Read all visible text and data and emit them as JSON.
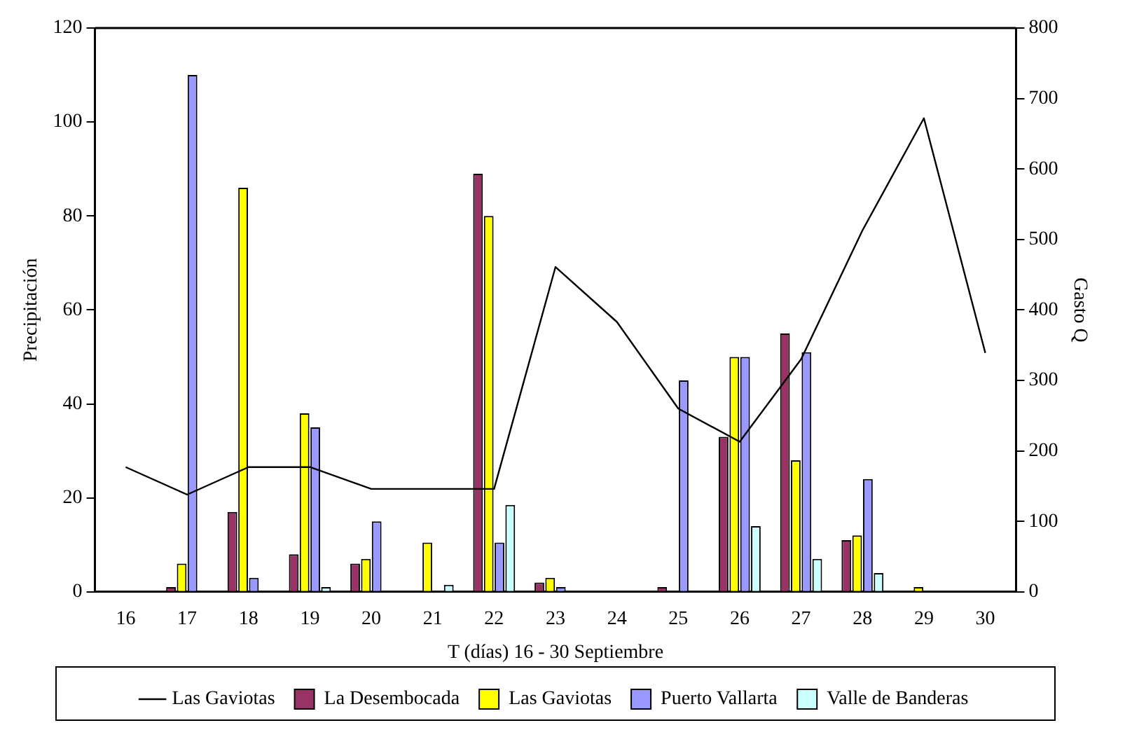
{
  "chart_data": {
    "type": "bar",
    "xlabel": "T (días) 16 - 30 Septiembre",
    "ylabel": "Precipitación",
    "y2label": "Gasto Q",
    "categories": [
      "16",
      "17",
      "18",
      "19",
      "20",
      "21",
      "22",
      "23",
      "24",
      "25",
      "26",
      "27",
      "28",
      "29",
      "30"
    ],
    "series": [
      {
        "name": "La Desembocada",
        "color": "#993366",
        "values": [
          null,
          1,
          17,
          8,
          6,
          null,
          89,
          2,
          null,
          1,
          33,
          55,
          11,
          null,
          null
        ]
      },
      {
        "name": "Las Gaviotas",
        "color": "#ffff00",
        "values": [
          null,
          6,
          86,
          38,
          7,
          10.5,
          80,
          3,
          null,
          null,
          50,
          28,
          12,
          1,
          null
        ]
      },
      {
        "name": "Puerto Vallarta",
        "color": "#9999ff",
        "values": [
          null,
          110,
          3,
          35,
          15,
          null,
          10.5,
          1,
          null,
          45,
          50,
          51,
          24,
          null,
          null
        ]
      },
      {
        "name": "Valle de Banderas",
        "color": "#ccffff",
        "values": [
          null,
          null,
          null,
          1,
          null,
          1.5,
          18.5,
          null,
          null,
          null,
          14,
          7,
          4,
          null,
          null
        ]
      },
      {
        "name": "Las Gaviotas",
        "type": "line",
        "axis": "y2",
        "color": "#000000",
        "values": [
          177,
          138,
          177,
          177,
          146,
          146,
          146,
          461,
          383,
          260,
          213,
          330,
          513,
          672,
          339
        ]
      }
    ],
    "ylim": [
      0,
      120
    ],
    "yticks": [
      0,
      20,
      40,
      60,
      80,
      100,
      120
    ],
    "y2lim": [
      0,
      800
    ],
    "y2ticks": [
      0,
      100,
      200,
      300,
      400,
      500,
      600,
      700,
      800
    ],
    "grid": false,
    "legend": "bottom",
    "marker": "none"
  }
}
